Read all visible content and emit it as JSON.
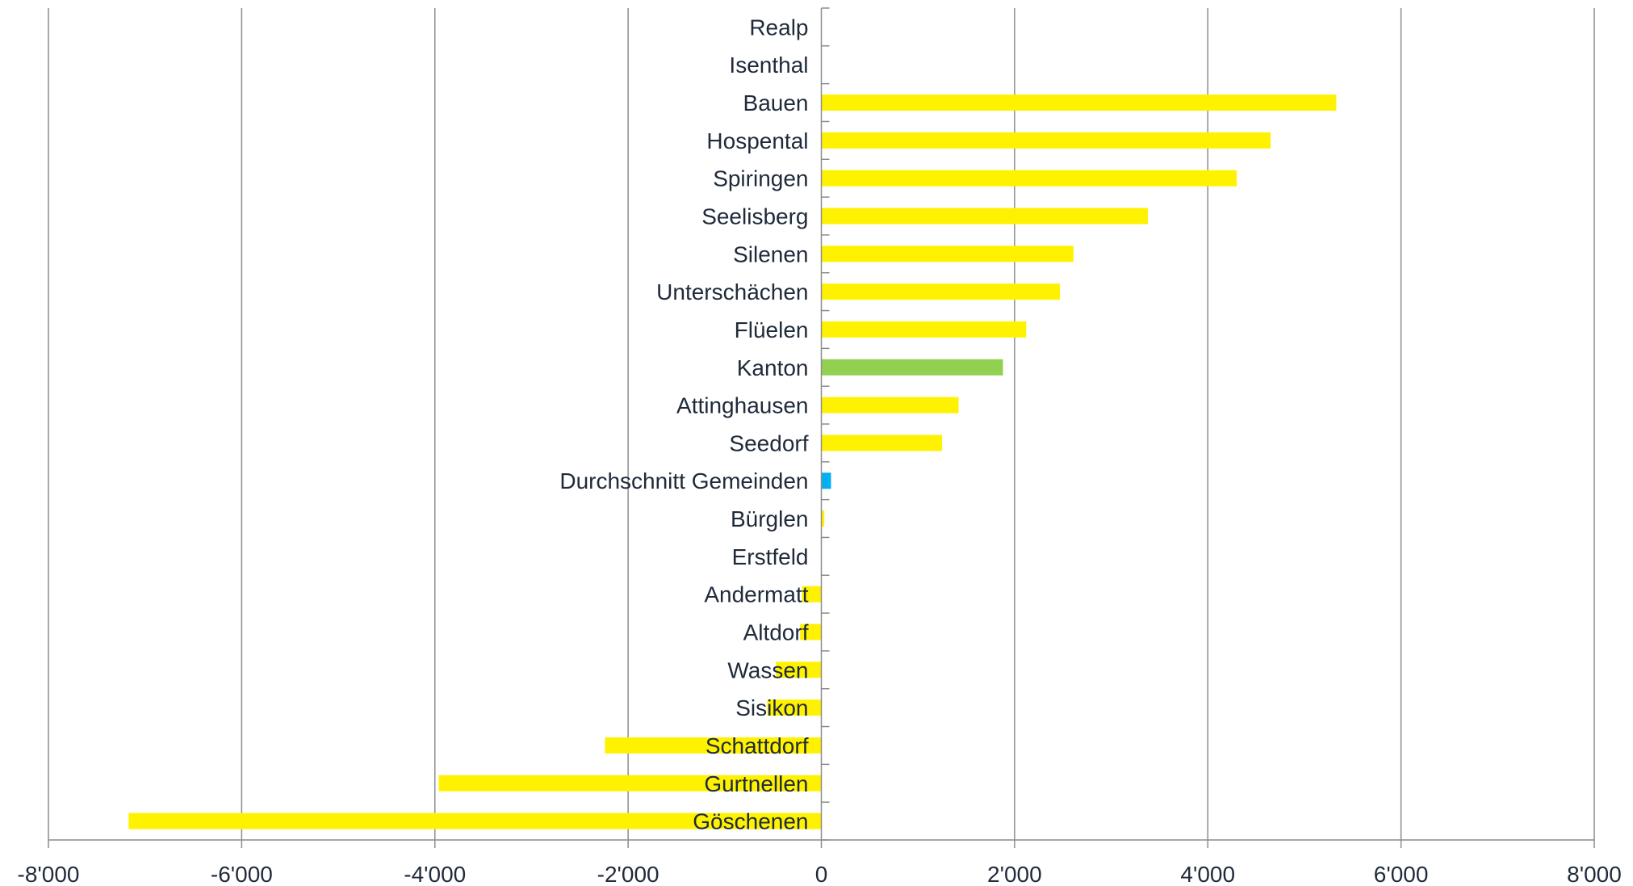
{
  "chart_data": {
    "type": "bar",
    "orientation": "horizontal",
    "categories": [
      "Realp",
      "Isenthal",
      "Bauen",
      "Hospental",
      "Spiringen",
      "Seelisberg",
      "Silenen",
      "Unterschächen",
      "Flüelen",
      "Kanton",
      "Attinghausen",
      "Seedorf",
      "Durchschnitt Gemeinden",
      "Bürglen",
      "Erstfeld",
      "Andermatt",
      "Altdorf",
      "Wassen",
      "Sisikon",
      "Schattdorf",
      "Gurtnellen",
      "Göschenen"
    ],
    "values": [
      0,
      0,
      5330,
      4650,
      4300,
      3380,
      2610,
      2470,
      2120,
      1880,
      1420,
      1250,
      100,
      30,
      0,
      -200,
      -220,
      -470,
      -560,
      -2240,
      -3960,
      -7170
    ],
    "bar_colors": [
      "#fff200",
      "#fff200",
      "#fff200",
      "#fff200",
      "#fff200",
      "#fff200",
      "#fff200",
      "#fff200",
      "#fff200",
      "#92d050",
      "#fff200",
      "#fff200",
      "#00b0f0",
      "#fff200",
      "#fff200",
      "#fff200",
      "#fff200",
      "#fff200",
      "#fff200",
      "#fff200",
      "#fff200",
      "#fff200"
    ],
    "xlim": [
      -8000,
      8000
    ],
    "x_ticks": [
      -8000,
      -6000,
      -4000,
      -2000,
      0,
      2000,
      4000,
      6000,
      8000
    ],
    "x_tick_labels": [
      "-8'000",
      "-6'000",
      "-4'000",
      "-2'000",
      "0",
      "2'000",
      "4'000",
      "6'000",
      "8'000"
    ],
    "grid": true,
    "title": "",
    "xlabel": "",
    "ylabel": ""
  }
}
